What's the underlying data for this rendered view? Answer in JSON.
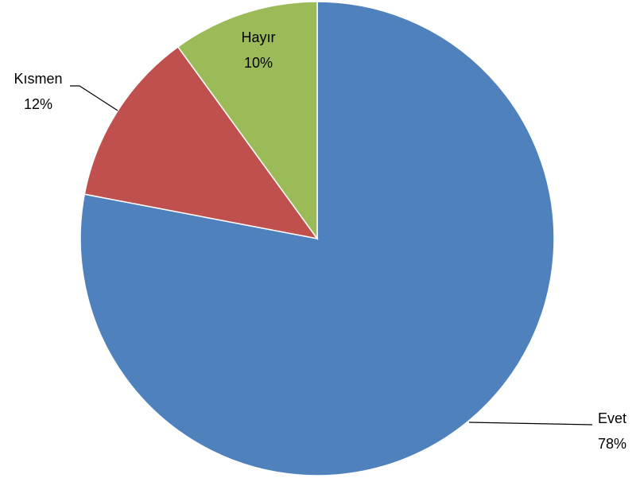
{
  "chart_data": {
    "type": "pie",
    "categories": [
      "Evet",
      "Kısmen",
      "Hayır"
    ],
    "values": [
      78,
      12,
      10
    ],
    "value_labels": [
      "78%",
      "12%",
      "10%"
    ],
    "colors": [
      "#4f81bd",
      "#c0504d",
      "#9bbb59"
    ]
  }
}
